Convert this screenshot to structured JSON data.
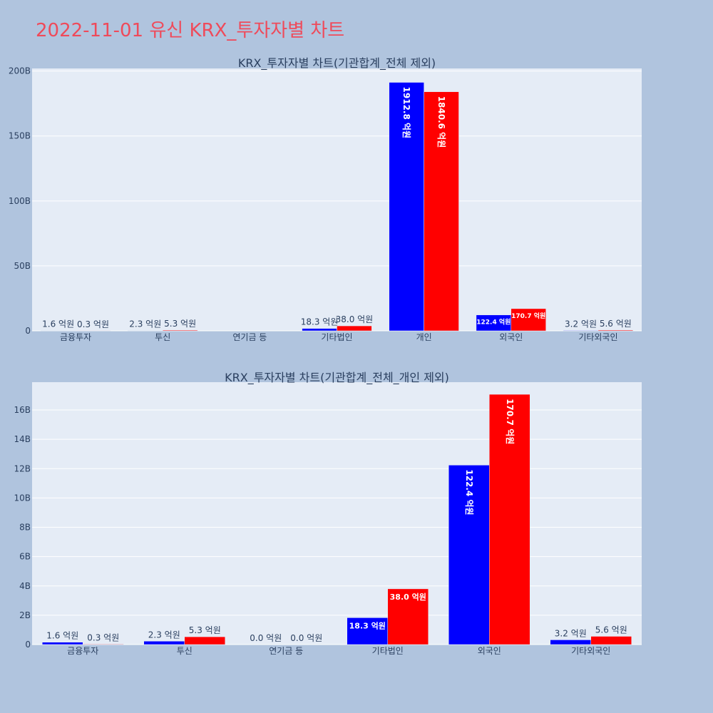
{
  "page_title": "2022-11-01 유신 KRX_투자자별 차트",
  "colors": {
    "background": "#b0c4de",
    "plot_bg": "#e5ecf6",
    "buy": "#0000ff",
    "sell": "#ff0000",
    "title": "#ef4a5a"
  },
  "chart_data": [
    {
      "type": "bar",
      "title": "KRX_투자자별 차트(기관합계_전체 제외)",
      "categories": [
        "금융투자",
        "투신",
        "연기금 등",
        "기타법인",
        "개인",
        "외국인",
        "기타외국인"
      ],
      "series": [
        {
          "color": "#0000ff",
          "values": [
            0.16,
            0.23,
            null,
            1.83,
            191.28,
            12.24,
            0.32
          ]
        },
        {
          "color": "#ff0000",
          "values": [
            0.03,
            0.53,
            null,
            3.8,
            184.06,
            17.07,
            0.56
          ]
        }
      ],
      "labels": [
        [
          "1.6 억원",
          "2.3 억원",
          "",
          "18.3 억원",
          "1912.8 억원",
          "122.4 억원",
          "3.2 억원"
        ],
        [
          "0.3 억원",
          "5.3 억원",
          "",
          "38.0 억원",
          "1840.6 억원",
          "170.7 억원",
          "5.6 억원"
        ]
      ],
      "value_unit": "B",
      "ylim": [
        0,
        202
      ],
      "yticks": [
        0,
        50,
        100,
        150,
        200
      ],
      "ytick_labels": [
        "0",
        "50B",
        "100B",
        "150B",
        "200B"
      ],
      "grid": true,
      "legend": "none"
    },
    {
      "type": "bar",
      "title": "KRX_투자자별 차트(기관합계_전체_개인 제외)",
      "categories": [
        "금융투자",
        "투신",
        "연기금 등",
        "기타법인",
        "외국인",
        "기타외국인"
      ],
      "series": [
        {
          "color": "#0000ff",
          "values": [
            0.16,
            0.23,
            0.0,
            1.83,
            12.24,
            0.32
          ]
        },
        {
          "color": "#ff0000",
          "values": [
            0.03,
            0.53,
            0.0,
            3.8,
            17.07,
            0.56
          ]
        }
      ],
      "labels": [
        [
          "1.6 억원",
          "2.3 억원",
          "0.0 억원",
          "18.3 억원",
          "122.4 억원",
          "3.2 억원"
        ],
        [
          "0.3 억원",
          "5.3 억원",
          "0.0 억원",
          "38.0 억원",
          "170.7 억원",
          "5.6 억원"
        ]
      ],
      "value_unit": "B",
      "ylim": [
        0,
        17.9
      ],
      "yticks": [
        0,
        2,
        4,
        6,
        8,
        10,
        12,
        14,
        16
      ],
      "ytick_labels": [
        "0",
        "2B",
        "4B",
        "6B",
        "8B",
        "10B",
        "12B",
        "14B",
        "16B"
      ],
      "grid": true,
      "legend": "none"
    }
  ]
}
